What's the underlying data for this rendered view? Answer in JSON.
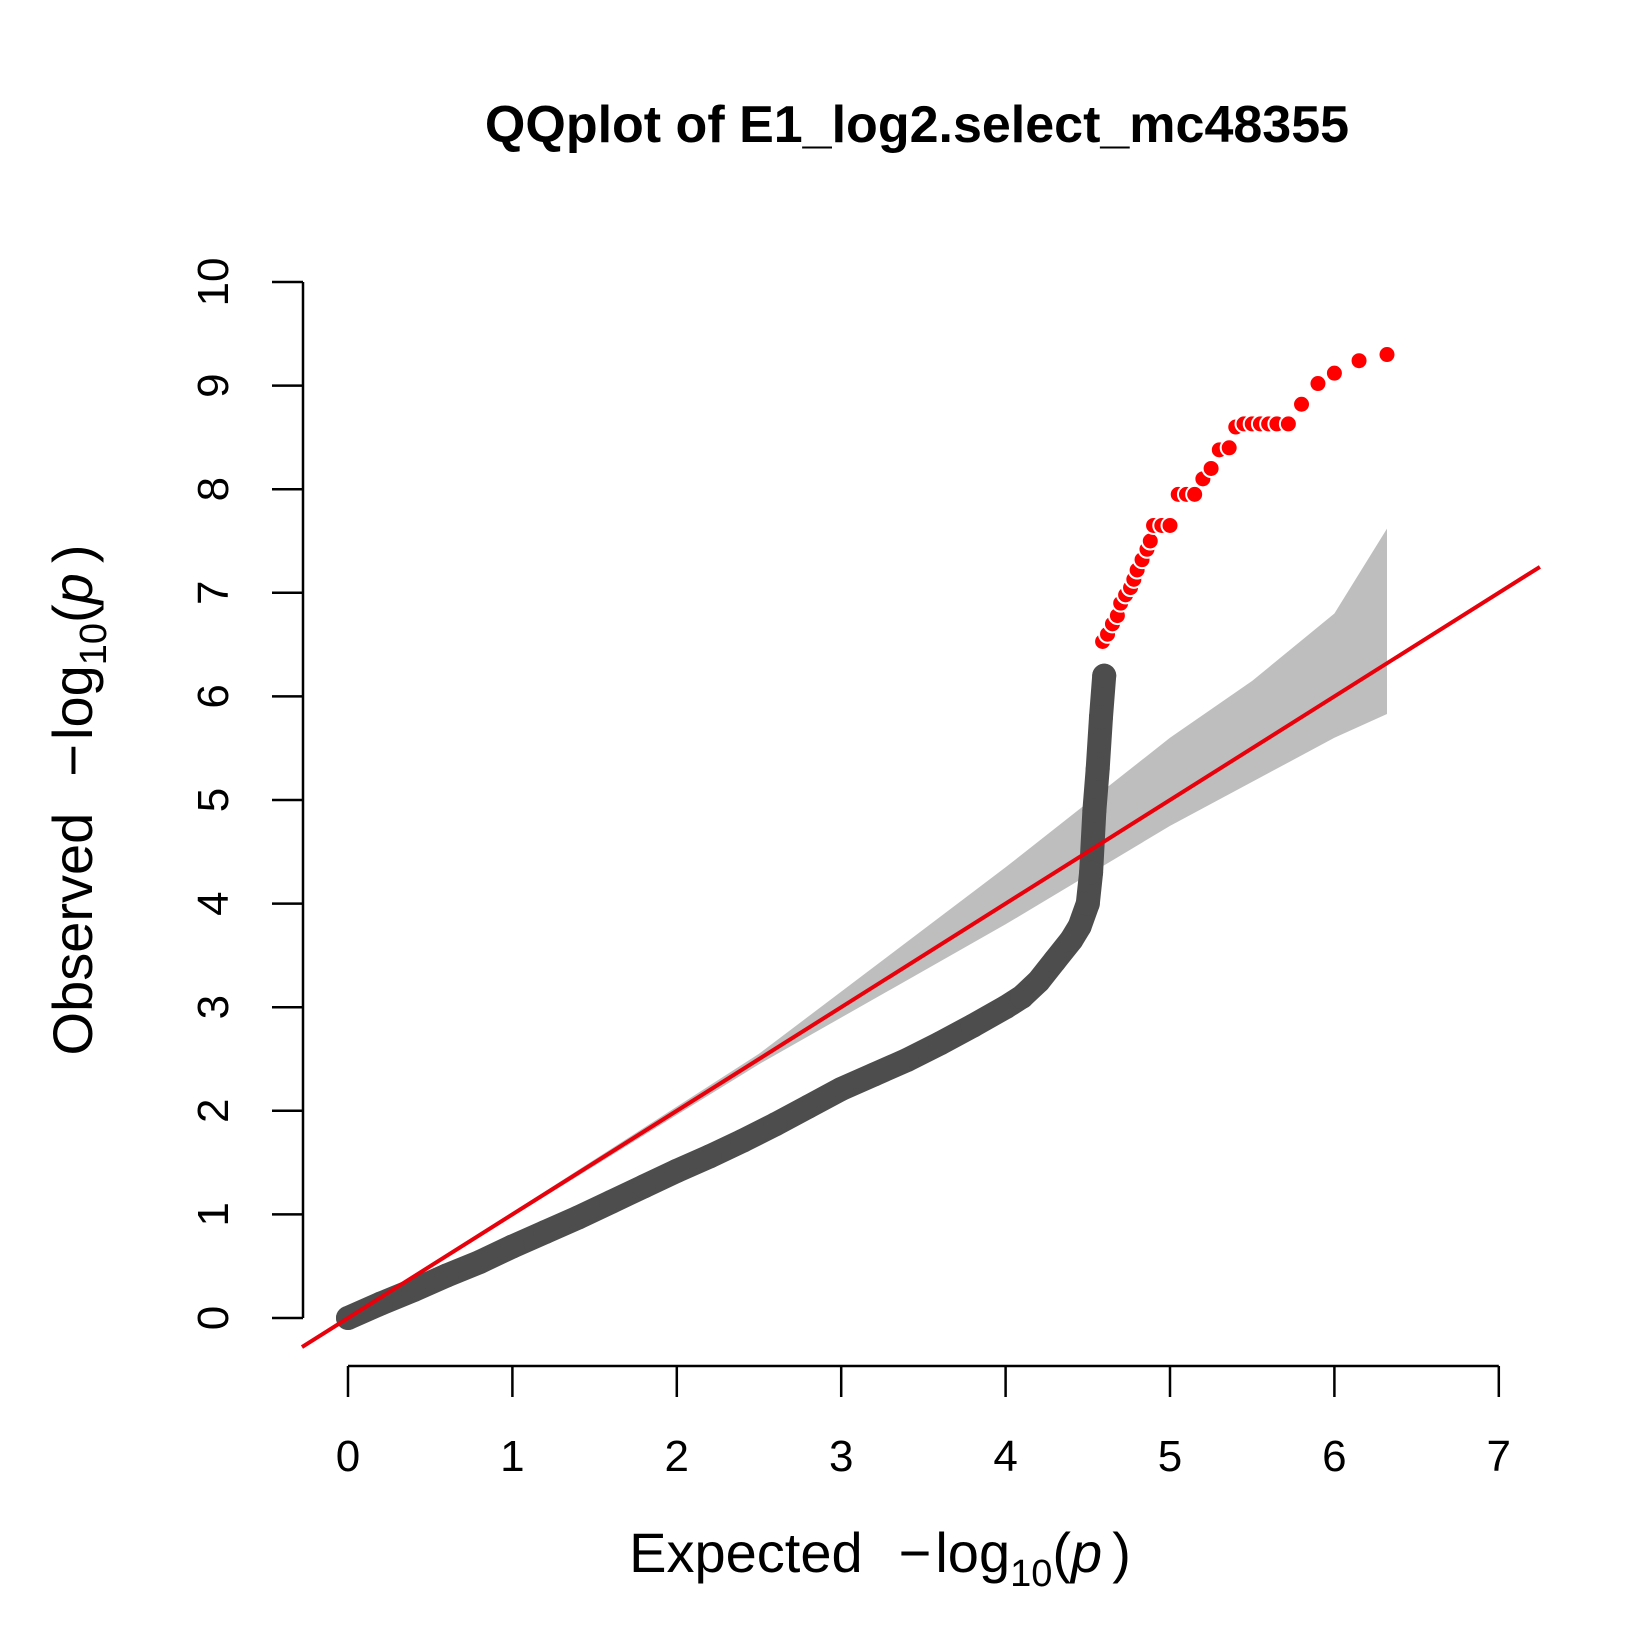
{
  "chart_data": {
    "type": "scatter",
    "title": "QQplot of E1_log2.select_mc48355",
    "xlabel": {
      "prefix": "Expected",
      "minus": "−",
      "log": "log",
      "base": "10",
      "open": "(",
      "var": "p",
      "close": ")"
    },
    "ylabel": {
      "prefix": "Observed",
      "minus": "−",
      "log": "log",
      "base": "10",
      "open": "(",
      "var": "p",
      "close": ")"
    },
    "xlim": [
      0,
      7
    ],
    "ylim": [
      0,
      10
    ],
    "x_ticks": [
      "0",
      "1",
      "2",
      "3",
      "4",
      "5",
      "6",
      "7"
    ],
    "y_ticks": [
      "0",
      "1",
      "2",
      "3",
      "4",
      "5",
      "6",
      "7",
      "8",
      "9",
      "10"
    ],
    "grid": false,
    "reference_line": {
      "intercept": 0,
      "slope": 1,
      "color": "#e8000b"
    },
    "confidence_band": {
      "color": "#bebebe",
      "upper": [
        [
          0,
          0
        ],
        [
          2.5,
          2.55
        ],
        [
          4.0,
          4.35
        ],
        [
          5.0,
          5.6
        ],
        [
          5.5,
          6.15
        ],
        [
          6.0,
          6.8
        ],
        [
          6.32,
          7.62
        ]
      ],
      "lower": [
        [
          6.32,
          5.83
        ],
        [
          6.0,
          5.6
        ],
        [
          5.0,
          4.75
        ],
        [
          4.0,
          3.8
        ],
        [
          2.5,
          2.45
        ],
        [
          0,
          0
        ]
      ]
    },
    "series": [
      {
        "color": "#4d4d4d",
        "points": [
          [
            0.0,
            0.0
          ],
          [
            0.2,
            0.14
          ],
          [
            0.4,
            0.27
          ],
          [
            0.6,
            0.41
          ],
          [
            0.8,
            0.54
          ],
          [
            1.0,
            0.69
          ],
          [
            1.2,
            0.83
          ],
          [
            1.4,
            0.97
          ],
          [
            1.6,
            1.12
          ],
          [
            1.8,
            1.27
          ],
          [
            2.0,
            1.42
          ],
          [
            2.2,
            1.56
          ],
          [
            2.4,
            1.71
          ],
          [
            2.6,
            1.87
          ],
          [
            2.8,
            2.04
          ],
          [
            3.0,
            2.21
          ],
          [
            3.2,
            2.35
          ],
          [
            3.4,
            2.49
          ],
          [
            3.6,
            2.65
          ],
          [
            3.8,
            2.82
          ],
          [
            4.0,
            3.0
          ],
          [
            4.1,
            3.1
          ],
          [
            4.2,
            3.25
          ],
          [
            4.3,
            3.45
          ],
          [
            4.4,
            3.65
          ],
          [
            4.45,
            3.78
          ],
          [
            4.5,
            4.0
          ],
          [
            4.52,
            4.3
          ],
          [
            4.54,
            4.9
          ],
          [
            4.56,
            5.3
          ],
          [
            4.58,
            5.8
          ],
          [
            4.6,
            6.2
          ]
        ]
      },
      {
        "color": "#ff0000",
        "points": [
          [
            4.59,
            6.53
          ],
          [
            4.62,
            6.6
          ],
          [
            4.65,
            6.7
          ],
          [
            4.68,
            6.78
          ],
          [
            4.7,
            6.9
          ],
          [
            4.73,
            6.98
          ],
          [
            4.76,
            7.05
          ],
          [
            4.78,
            7.13
          ],
          [
            4.8,
            7.22
          ],
          [
            4.83,
            7.32
          ],
          [
            4.86,
            7.42
          ],
          [
            4.88,
            7.5
          ],
          [
            4.9,
            7.65
          ],
          [
            4.95,
            7.65
          ],
          [
            5.0,
            7.65
          ],
          [
            5.05,
            7.95
          ],
          [
            5.1,
            7.95
          ],
          [
            5.15,
            7.95
          ],
          [
            5.2,
            8.1
          ],
          [
            5.25,
            8.2
          ],
          [
            5.3,
            8.38
          ],
          [
            5.36,
            8.4
          ],
          [
            5.4,
            8.6
          ],
          [
            5.45,
            8.63
          ],
          [
            5.5,
            8.63
          ],
          [
            5.55,
            8.63
          ],
          [
            5.6,
            8.63
          ],
          [
            5.65,
            8.63
          ],
          [
            5.72,
            8.63
          ],
          [
            5.8,
            8.82
          ],
          [
            5.9,
            9.02
          ],
          [
            6.0,
            9.12
          ],
          [
            6.15,
            9.24
          ],
          [
            6.32,
            9.3
          ]
        ]
      }
    ]
  }
}
